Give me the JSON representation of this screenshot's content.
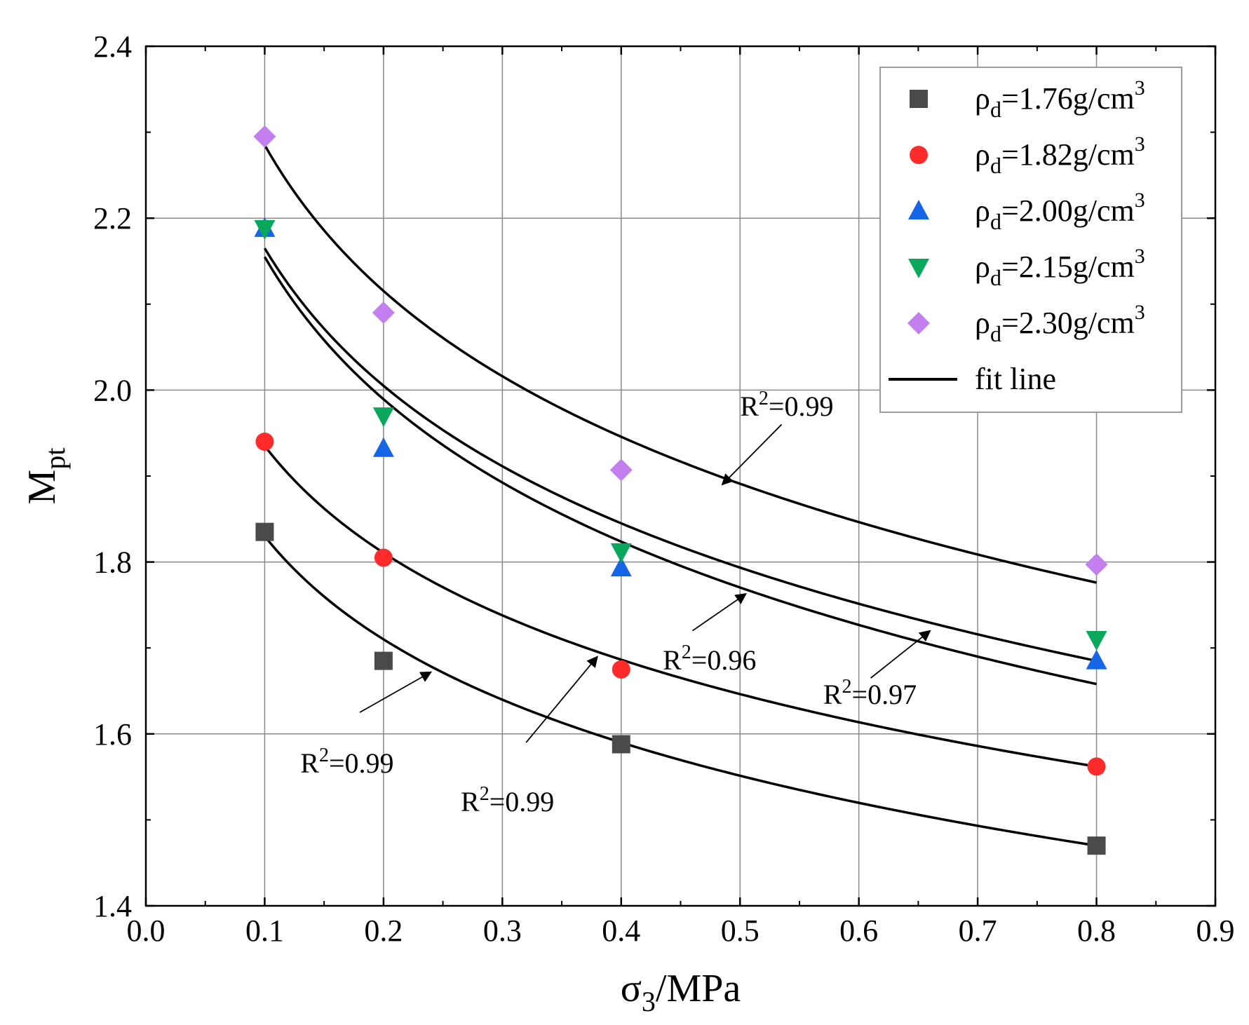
{
  "chart_data": {
    "type": "scatter",
    "title": "",
    "xlabel": {
      "main": "σ",
      "sub": "3",
      "rest": "/MPa"
    },
    "ylabel": {
      "main": "M",
      "sub": "pt"
    },
    "xlim": [
      0.0,
      0.9
    ],
    "ylim": [
      1.4,
      2.4
    ],
    "xticks": [
      "0.0",
      "0.1",
      "0.2",
      "0.3",
      "0.4",
      "0.5",
      "0.6",
      "0.7",
      "0.8",
      "0.9"
    ],
    "yticks": [
      "1.4",
      "1.6",
      "1.8",
      "2.0",
      "2.2",
      "2.4"
    ],
    "xtick_values": [
      0.0,
      0.1,
      0.2,
      0.3,
      0.4,
      0.5,
      0.6,
      0.7,
      0.8,
      0.9
    ],
    "ytick_values": [
      1.4,
      1.6,
      1.8,
      2.0,
      2.2,
      2.4
    ],
    "grid": true,
    "legend_position": "top-right",
    "x": [
      0.1,
      0.2,
      0.4,
      0.8
    ],
    "series": [
      {
        "name": "ρd=1.76g/cm3",
        "label_main": "ρ",
        "label_sub": "d",
        "label_mid": "=1.76g/cm",
        "label_sup": "3",
        "marker": "square",
        "color": "#4a4a4a",
        "values": [
          1.835,
          1.685,
          1.588,
          1.47
        ],
        "fit": {
          "a": 1.83,
          "b": 0.5,
          "c": 0.0345
        }
      },
      {
        "name": "ρd=1.82g/cm3",
        "label_main": "ρ",
        "label_sub": "d",
        "label_mid": "=1.82g/cm",
        "label_sup": "3",
        "marker": "circle",
        "color": "#ff2a2a",
        "values": [
          1.94,
          1.805,
          1.675,
          1.562
        ],
        "fit": {
          "a": 1.935,
          "b": 0.35,
          "c": 0.034
        }
      },
      {
        "name": "ρd=2.00g/cm3",
        "label_main": "ρ",
        "label_sub": "d",
        "label_mid": "=2.00g/cm",
        "label_sup": "3",
        "marker": "triangle-up",
        "color": "#1565e6",
        "values": [
          2.188,
          1.932,
          1.793,
          1.685
        ],
        "fit": {
          "a": 2.165,
          "b": 0.35,
          "c": 0.0355
        }
      },
      {
        "name": "ρd=2.15g/cm3",
        "label_main": "ρ",
        "label_sub": "d",
        "label_mid": "=2.15g/cm",
        "label_sup": "3",
        "marker": "triangle-down",
        "color": "#0aa85c",
        "values": [
          2.188,
          1.97,
          1.812,
          1.71
        ],
        "fit": {
          "a": 2.155,
          "b": 0.35,
          "c": 0.036
        }
      },
      {
        "name": "ρd=2.30g/cm3",
        "label_main": "ρ",
        "label_sub": "d",
        "label_mid": "=2.30g/cm",
        "label_sup": "3",
        "marker": "diamond",
        "color": "#c37ff0",
        "values": [
          2.295,
          2.09,
          1.907,
          1.797
        ],
        "fit": {
          "a": 2.285,
          "b": 0.35,
          "c": 0.0305
        }
      }
    ],
    "fit_legend_label": "fit line",
    "annotations": [
      {
        "text_main": "R",
        "text_sup": "2",
        "text_rest": "=0.99",
        "series": 0,
        "label_x": 0.13,
        "label_y": 1.555,
        "arrow_from": [
          0.18,
          1.625
        ],
        "arrow_to": [
          0.24,
          1.672
        ]
      },
      {
        "text_main": "R",
        "text_sup": "2",
        "text_rest": "=0.99",
        "series": 1,
        "label_x": 0.265,
        "label_y": 1.51,
        "arrow_from": [
          0.32,
          1.59
        ],
        "arrow_to": [
          0.38,
          1.69
        ]
      },
      {
        "text_main": "R",
        "text_sup": "2",
        "text_rest": "=0.96",
        "series": 2,
        "label_x": 0.435,
        "label_y": 1.675,
        "arrow_from": [
          0.46,
          1.72
        ],
        "arrow_to": [
          0.505,
          1.763
        ]
      },
      {
        "text_main": "R",
        "text_sup": "2",
        "text_rest": "=0.97",
        "series": 3,
        "label_x": 0.57,
        "label_y": 1.635,
        "arrow_from": [
          0.61,
          1.665
        ],
        "arrow_to": [
          0.66,
          1.72
        ]
      },
      {
        "text_main": "R",
        "text_sup": "2",
        "text_rest": "=0.99",
        "series": 4,
        "label_x": 0.5,
        "label_y": 1.97,
        "arrow_from": [
          0.535,
          1.96
        ],
        "arrow_to": [
          0.485,
          1.89
        ]
      }
    ]
  }
}
